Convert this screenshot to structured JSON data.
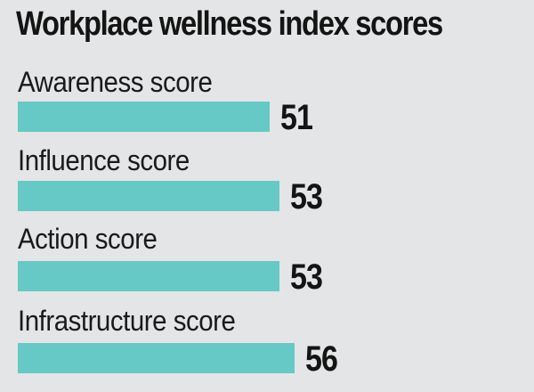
{
  "chart_data": {
    "type": "bar",
    "orientation": "horizontal",
    "title": "Workplace wellness index scores",
    "categories": [
      "Awareness score",
      "Influence score",
      "Action score",
      "Infrastructure score"
    ],
    "values": [
      51,
      53,
      53,
      56
    ],
    "grid": false,
    "legend": "none",
    "colors": {
      "bar": "#66c9c6",
      "background": "#e4e5e6",
      "text": "#1a1a1a"
    }
  }
}
